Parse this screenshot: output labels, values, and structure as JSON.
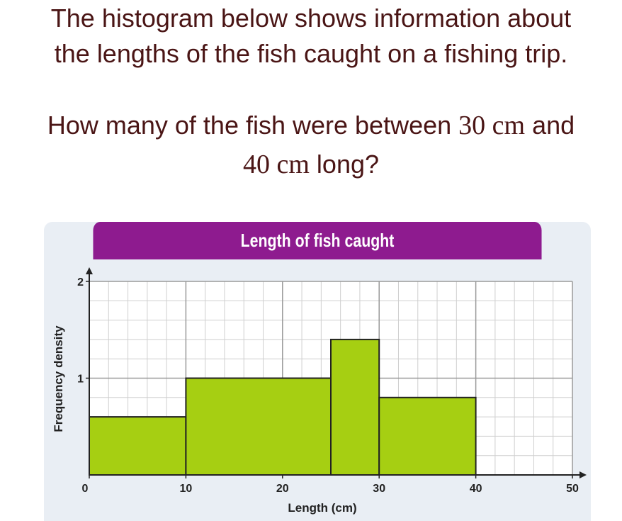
{
  "question": {
    "line1": "The histogram below shows information about",
    "line2": "the lengths of the fish caught on a fishing trip.",
    "line3_pre": "How many of the fish were between ",
    "line3_math_a": "30 cm",
    "line3_mid": " and",
    "line4_math_b": "40 cm",
    "line4_post": " long?"
  },
  "colors": {
    "header": "#8e1b8f",
    "bar_fill": "#a6cf12",
    "bar_stroke": "#222222",
    "grid_major": "#9a9a9a",
    "grid_minor": "#cfcfcf",
    "question_text": "#4a1515"
  },
  "chart_data": {
    "type": "bar",
    "title": "Length of fish caught",
    "xlabel": "Length (cm)",
    "ylabel": "Frequency density",
    "xlim": [
      0,
      50
    ],
    "ylim": [
      0,
      2
    ],
    "x_ticks": [
      "0",
      "10",
      "20",
      "30",
      "40",
      "50"
    ],
    "y_ticks": [
      "1",
      "2"
    ],
    "grid": true,
    "bins": [
      {
        "from": 0,
        "to": 10,
        "value": 0.6
      },
      {
        "from": 10,
        "to": 25,
        "value": 1.0
      },
      {
        "from": 25,
        "to": 30,
        "value": 1.4
      },
      {
        "from": 30,
        "to": 40,
        "value": 0.8
      }
    ]
  }
}
